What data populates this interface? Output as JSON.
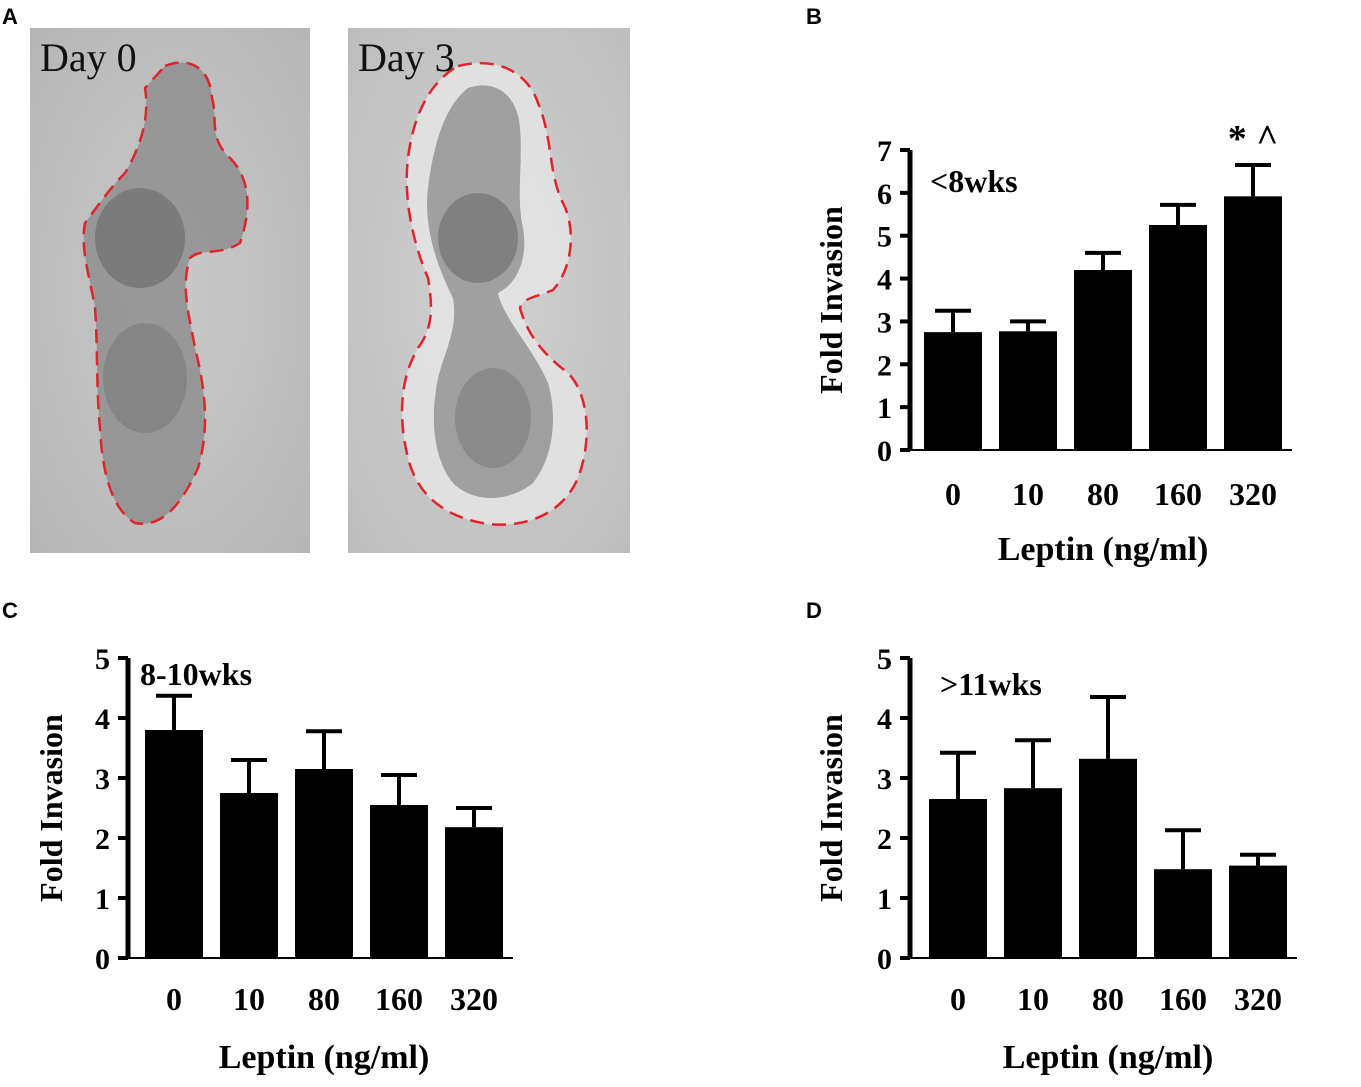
{
  "panels": {
    "A": {
      "letter": "A",
      "photos": [
        {
          "label": "Day 0"
        },
        {
          "label": "Day 3"
        }
      ],
      "outline_color": "#e0242b"
    },
    "B": {
      "letter": "B"
    },
    "C": {
      "letter": "C"
    },
    "D": {
      "letter": "D"
    }
  },
  "chart_data": [
    {
      "panel": "B",
      "type": "bar",
      "title": "<8wks",
      "xlabel": "Leptin (ng/ml)",
      "ylabel": "Fold Invasion",
      "categories": [
        "0",
        "10",
        "80",
        "160",
        "320"
      ],
      "values": [
        2.75,
        2.77,
        4.2,
        5.25,
        5.92
      ],
      "errors": [
        0.5,
        0.23,
        0.4,
        0.47,
        0.73
      ],
      "ylim": [
        0,
        7
      ],
      "yticks": [
        "0",
        "1",
        "2",
        "3",
        "4",
        "5",
        "6",
        "7"
      ],
      "annotation": {
        "category": "320",
        "text": "* ^"
      },
      "bar_color": "#000000"
    },
    {
      "panel": "C",
      "type": "bar",
      "title": "8-10wks",
      "xlabel": "Leptin (ng/ml)",
      "ylabel": "Fold Invasion",
      "categories": [
        "0",
        "10",
        "80",
        "160",
        "320"
      ],
      "values": [
        3.8,
        2.75,
        3.15,
        2.55,
        2.18
      ],
      "errors": [
        0.57,
        0.55,
        0.63,
        0.5,
        0.32
      ],
      "ylim": [
        0,
        5
      ],
      "yticks": [
        "0",
        "1",
        "2",
        "3",
        "4",
        "5"
      ],
      "bar_color": "#000000"
    },
    {
      "panel": "D",
      "type": "bar",
      "title": ">11wks",
      "xlabel": "Leptin (ng/ml)",
      "ylabel": "Fold Invasion",
      "categories": [
        "0",
        "10",
        "80",
        "160",
        "320"
      ],
      "values": [
        2.65,
        2.83,
        3.32,
        1.48,
        1.54
      ],
      "errors": [
        0.77,
        0.8,
        1.03,
        0.65,
        0.18
      ],
      "ylim": [
        0,
        5
      ],
      "yticks": [
        "0",
        "1",
        "2",
        "3",
        "4",
        "5"
      ],
      "bar_color": "#000000"
    }
  ]
}
